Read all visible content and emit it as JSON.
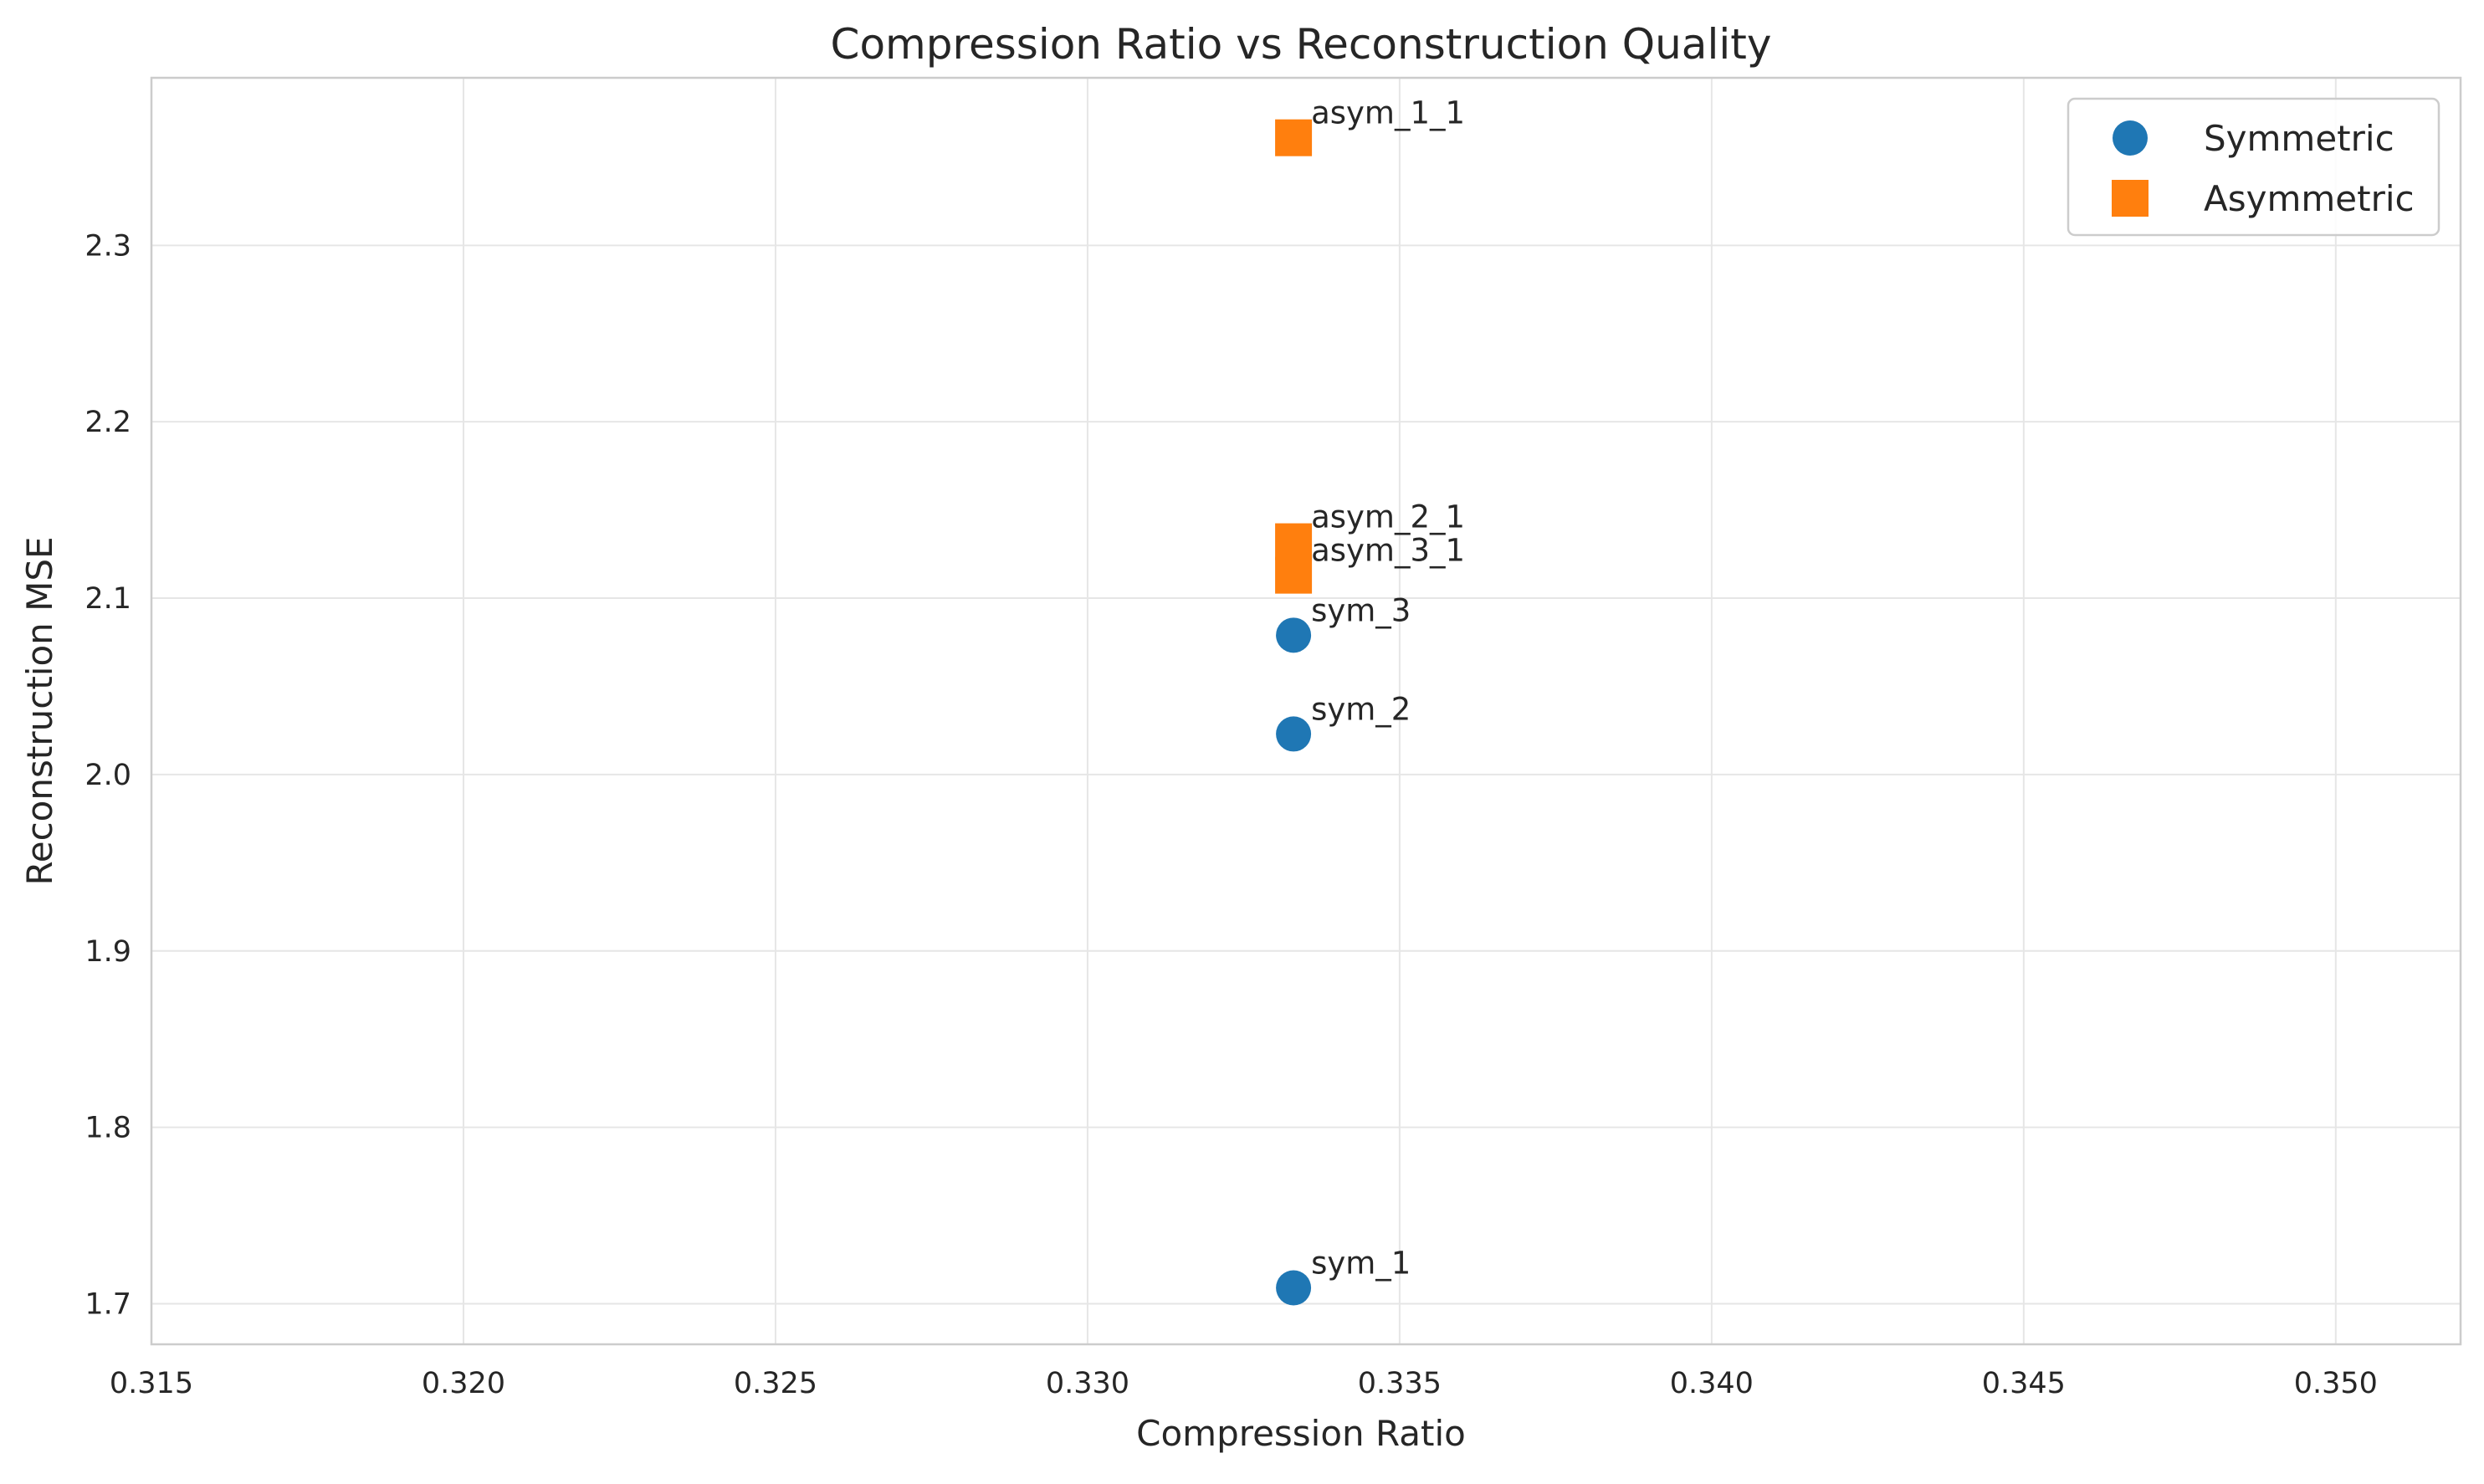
{
  "chart_data": {
    "type": "scatter",
    "title": "Compression Ratio vs Reconstruction Quality",
    "xlabel": "Compression Ratio",
    "ylabel": "Reconstruction MSE",
    "xlim": [
      0.315,
      0.352
    ],
    "ylim": [
      1.677,
      2.395
    ],
    "xticks": [
      0.315,
      0.32,
      0.325,
      0.33,
      0.335,
      0.34,
      0.345,
      0.35
    ],
    "xtick_labels": [
      "0.315",
      "0.320",
      "0.325",
      "0.330",
      "0.335",
      "0.340",
      "0.345",
      "0.350"
    ],
    "yticks": [
      1.7,
      1.8,
      1.9,
      2.0,
      2.1,
      2.2,
      2.3
    ],
    "ytick_labels": [
      "1.7",
      "1.8",
      "1.9",
      "2.0",
      "2.1",
      "2.2",
      "2.3"
    ],
    "grid": true,
    "legend_position": "top-right",
    "series": [
      {
        "name": "Symmetric",
        "marker": "circle",
        "color": "#1f77b4",
        "points": [
          {
            "label": "sym_1",
            "x": 0.3333,
            "y": 1.709
          },
          {
            "label": "sym_2",
            "x": 0.3333,
            "y": 2.023
          },
          {
            "label": "sym_3",
            "x": 0.3333,
            "y": 2.079
          }
        ]
      },
      {
        "name": "Asymmetric",
        "marker": "square",
        "color": "#ff7f0e",
        "points": [
          {
            "label": "asym_1_1",
            "x": 0.3333,
            "y": 2.361
          },
          {
            "label": "asym_2_1",
            "x": 0.3333,
            "y": 2.132
          },
          {
            "label": "asym_3_1",
            "x": 0.3333,
            "y": 2.113
          }
        ]
      }
    ]
  }
}
